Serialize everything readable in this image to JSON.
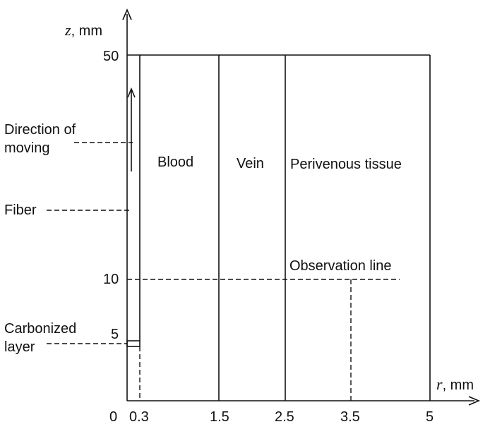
{
  "axes": {
    "z_symbol": "z",
    "z_unit": ", mm",
    "r_symbol": "r",
    "r_unit": ", mm"
  },
  "r_ticks": [
    "0",
    "0.3",
    "1.5",
    "2.5",
    "3.5",
    "5"
  ],
  "z_ticks": [
    "50",
    "10",
    "5"
  ],
  "regions": {
    "blood": "Blood",
    "vein": "Vein",
    "perivenous": "Perivenous tissue"
  },
  "annotations": {
    "direction_line1": "Direction of",
    "direction_line2": "moving",
    "fiber": "Fiber",
    "carbonized_line1": "Carbonized",
    "carbonized_line2": "layer",
    "observation": "Observation line"
  }
}
